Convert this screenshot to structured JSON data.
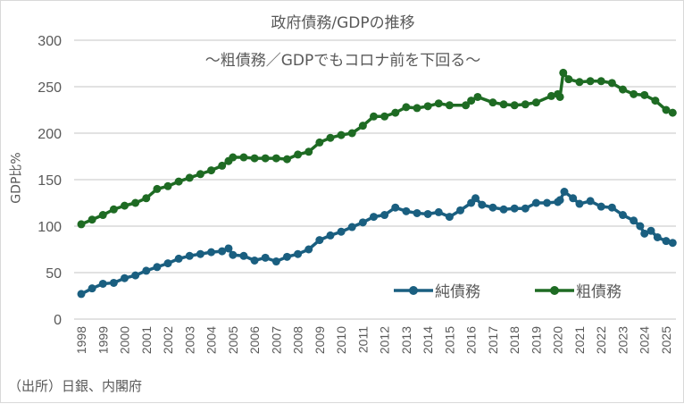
{
  "chart_data": {
    "type": "line",
    "title": "政府債務/GDPの推移",
    "subtitle": "～粗債務／GDPでもコロナ前を下回る～",
    "xlabel": "",
    "ylabel": "GDP比%",
    "ylim": [
      0,
      300
    ],
    "yticks": [
      0,
      50,
      100,
      150,
      200,
      250,
      300
    ],
    "xlim": [
      1998,
      2025.3
    ],
    "xticks": [
      "1998",
      "1999",
      "2000",
      "2001",
      "2002",
      "2003",
      "2004",
      "2005",
      "2006",
      "2007",
      "2008",
      "2009",
      "2010",
      "2011",
      "2012",
      "2013",
      "2014",
      "2015",
      "2016",
      "2017",
      "2018",
      "2019",
      "2020",
      "2021",
      "2022",
      "2023",
      "2024",
      "2025"
    ],
    "grid": true,
    "legend_position": "bottom-right",
    "series": [
      {
        "name": "純債務",
        "color": "#1a5f80",
        "x": [
          1998,
          1998.5,
          1999,
          1999.5,
          2000,
          2000.5,
          2001,
          2001.5,
          2002,
          2002.5,
          2003,
          2003.5,
          2004,
          2004.5,
          2004.8,
          2005,
          2005.5,
          2006,
          2006.5,
          2007,
          2007.5,
          2008,
          2008.5,
          2009,
          2009.5,
          2010,
          2010.5,
          2011,
          2011.5,
          2012,
          2012.5,
          2013,
          2013.5,
          2014,
          2014.5,
          2015,
          2015.5,
          2016,
          2016.2,
          2016.5,
          2017,
          2017.5,
          2018,
          2018.5,
          2019,
          2019.5,
          2020,
          2020.1,
          2020.3,
          2020.7,
          2021,
          2021.5,
          2022,
          2022.5,
          2023,
          2023.5,
          2023.8,
          2024,
          2024.3,
          2024.6,
          2025,
          2025.3
        ],
        "y": [
          27,
          33,
          38,
          39,
          44,
          47,
          52,
          56,
          60,
          65,
          68,
          70,
          72,
          73,
          76,
          69,
          68,
          63,
          66,
          62,
          67,
          70,
          75,
          85,
          90,
          94,
          99,
          104,
          110,
          112,
          120,
          116,
          114,
          113,
          115,
          110,
          117,
          125,
          130,
          123,
          120,
          118,
          119,
          119,
          125,
          125,
          126,
          128,
          137,
          130,
          124,
          127,
          121,
          120,
          112,
          106,
          100,
          92,
          95,
          88,
          84,
          82
        ]
      },
      {
        "name": "粗債務",
        "color": "#1e6b23",
        "x": [
          1998,
          1998.5,
          1999,
          1999.5,
          2000,
          2000.5,
          2001,
          2001.5,
          2002,
          2002.5,
          2003,
          2003.5,
          2004,
          2004.5,
          2004.8,
          2005,
          2005.5,
          2006,
          2006.5,
          2007,
          2007.5,
          2008,
          2008.5,
          2009,
          2009.5,
          2010,
          2010.5,
          2011,
          2011.5,
          2012,
          2012.5,
          2013,
          2013.5,
          2014,
          2014.5,
          2015,
          2015.75,
          2016,
          2016.3,
          2017,
          2017.5,
          2018,
          2018.5,
          2019,
          2019.7,
          2020,
          2020.1,
          2020.25,
          2020.5,
          2021,
          2021.5,
          2022,
          2022.5,
          2023,
          2023.5,
          2024,
          2024.5,
          2025,
          2025.3
        ],
        "y": [
          102,
          107,
          112,
          118,
          122,
          125,
          130,
          140,
          143,
          148,
          152,
          156,
          160,
          165,
          170,
          174,
          174,
          173,
          173,
          173,
          172,
          177,
          180,
          190,
          195,
          198,
          200,
          208,
          218,
          218,
          222,
          228,
          227,
          229,
          232,
          230,
          230,
          235,
          239,
          233,
          231,
          230,
          231,
          233,
          240,
          242,
          239,
          265,
          258,
          255,
          256,
          256,
          254,
          247,
          242,
          241,
          235,
          225,
          222
        ]
      }
    ]
  },
  "source": "（出所）日銀、内閣府"
}
